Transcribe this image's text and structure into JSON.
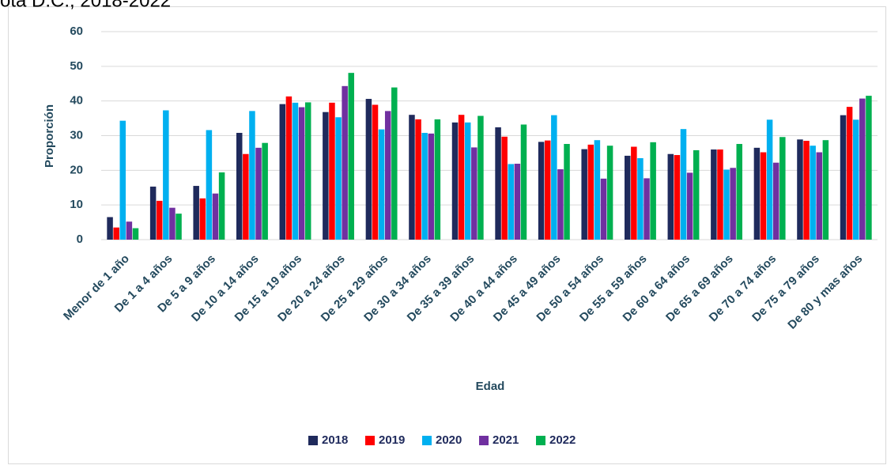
{
  "chart_data": {
    "type": "bar",
    "title": "ota D.C., 2018-2022",
    "x_label": "Edad",
    "y_label": "Proporción",
    "categories": [
      "Menor de 1 año",
      "De 1 a 4 años",
      "De 5 a 9 años",
      "De 10 a 14 años",
      "De 15 a 19 años",
      "De 20 a 24 años",
      "De 25 a 29 años",
      "De 30 a 34  años",
      "De 35 a 39 años",
      "De 40 a 44 años",
      "De 45 a 49 años",
      "De 50 a 54 años",
      "De 55 a 59 años",
      "De 60 a 64 años",
      "De 65 a 69 años",
      "De 70 a 74 años",
      "De 75 a 79 años",
      "De 80 y mas años"
    ],
    "series": [
      {
        "name": "2018",
        "color": "#1f2a5c",
        "values": [
          6.5,
          15.3,
          15.5,
          30.8,
          39.1,
          36.8,
          40.6,
          36.0,
          33.8,
          32.4,
          28.2,
          26.1,
          24.2,
          24.7,
          26.0,
          26.5,
          28.9,
          35.9
        ]
      },
      {
        "name": "2019",
        "color": "#ff0000",
        "values": [
          3.5,
          11.2,
          11.9,
          24.7,
          41.3,
          39.5,
          38.9,
          34.7,
          36.0,
          29.7,
          28.6,
          27.4,
          26.8,
          24.4,
          26.0,
          25.2,
          28.5,
          38.3
        ]
      },
      {
        "name": "2020",
        "color": "#00b0f0",
        "values": [
          34.3,
          37.3,
          31.6,
          37.1,
          39.5,
          35.3,
          31.8,
          30.8,
          33.8,
          21.8,
          35.9,
          28.7,
          23.5,
          31.9,
          20.2,
          34.6,
          27.1,
          34.6
        ]
      },
      {
        "name": "2021",
        "color": "#7030a0",
        "values": [
          5.2,
          9.2,
          13.3,
          26.5,
          38.2,
          44.3,
          37.1,
          30.6,
          26.6,
          21.9,
          20.3,
          17.6,
          17.7,
          19.3,
          20.7,
          22.2,
          25.2,
          40.7
        ]
      },
      {
        "name": "2022",
        "color": "#00b050",
        "values": [
          3.3,
          7.5,
          19.4,
          27.9,
          39.6,
          48.1,
          43.9,
          34.7,
          35.7,
          33.2,
          27.6,
          27.1,
          28.1,
          25.8,
          27.6,
          29.6,
          28.7,
          41.5
        ]
      }
    ],
    "ylim": [
      0,
      60
    ],
    "yticks": [
      0,
      10,
      20,
      30,
      40,
      50,
      60
    ],
    "grid": true,
    "legend": "bottom"
  }
}
